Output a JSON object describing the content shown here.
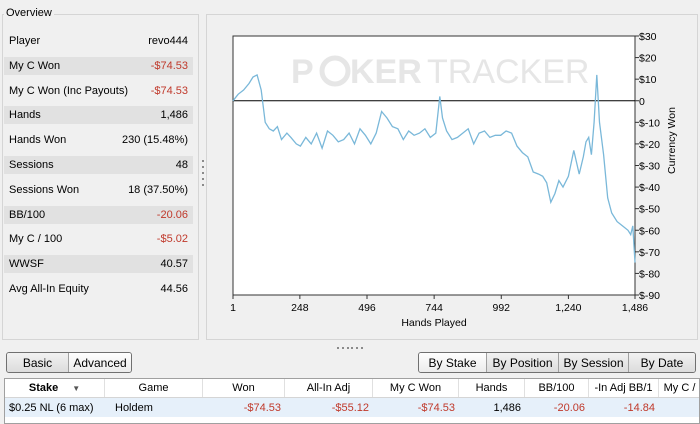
{
  "overview": {
    "title": "Overview",
    "stats": [
      {
        "label": "Player",
        "value": "revo444",
        "negative": false,
        "shaded": false
      },
      {
        "label": "My C Won",
        "value": "-$74.53",
        "negative": true,
        "shaded": true
      },
      {
        "label": "My C Won (Inc Payouts)",
        "value": "-$74.53",
        "negative": true,
        "shaded": false
      },
      {
        "label": "Hands",
        "value": "1,486",
        "negative": false,
        "shaded": true
      },
      {
        "label": "Hands Won",
        "value": "230 (15.48%)",
        "negative": false,
        "shaded": false
      },
      {
        "label": "Sessions",
        "value": "48",
        "negative": false,
        "shaded": true
      },
      {
        "label": "Sessions Won",
        "value": "18 (37.50%)",
        "negative": false,
        "shaded": false
      },
      {
        "label": "BB/100",
        "value": "-20.06",
        "negative": true,
        "shaded": true
      },
      {
        "label": "My C / 100",
        "value": "-$5.02",
        "negative": true,
        "shaded": false
      },
      {
        "label": "WWSF",
        "value": "40.57",
        "negative": false,
        "shaded": true
      },
      {
        "label": "Avg All-In Equity",
        "value": "44.56",
        "negative": false,
        "shaded": false
      }
    ]
  },
  "chart": {
    "watermark_left": "P",
    "watermark_right": "KER",
    "watermark_brand": "TRACKER",
    "colors": {
      "line": "#7ab8d9",
      "zero_line": "#000000",
      "grid": "#dddddd",
      "watermark": "#e6e6e6"
    }
  },
  "chart_data": {
    "type": "line",
    "xlabel": "Hands Played",
    "ylabel": "Currency Won",
    "xlim": [
      1,
      1486
    ],
    "ylim": [
      -90,
      30
    ],
    "x_ticks": [
      "1",
      "248",
      "496",
      "744",
      "992",
      "1,240",
      "1,486"
    ],
    "x_tick_values": [
      1,
      248,
      496,
      744,
      992,
      1240,
      1486
    ],
    "y_ticks": [
      "$30",
      "$20",
      "$10",
      "0",
      "$-10",
      "$-20",
      "$-30",
      "$-40",
      "$-50",
      "$-60",
      "$-70",
      "$-80",
      "$-90"
    ],
    "y_tick_values": [
      30,
      20,
      10,
      0,
      -10,
      -20,
      -30,
      -40,
      -50,
      -60,
      -70,
      -80,
      -90
    ],
    "series": [
      {
        "x": [
          1,
          20,
          40,
          60,
          75,
          90,
          105,
          120,
          135,
          150,
          165,
          180,
          200,
          215,
          235,
          250,
          270,
          290,
          310,
          330,
          350,
          370,
          390,
          410,
          430,
          450,
          470,
          490,
          510,
          530,
          550,
          570,
          590,
          610,
          630,
          650,
          670,
          690,
          710,
          730,
          750,
          765,
          775,
          790,
          810,
          830,
          850,
          870,
          890,
          910,
          930,
          950,
          970,
          990,
          1010,
          1030,
          1050,
          1070,
          1090,
          1110,
          1130,
          1145,
          1160,
          1175,
          1190,
          1205,
          1220,
          1240,
          1260,
          1280,
          1295,
          1305,
          1315,
          1325,
          1335,
          1345,
          1355,
          1370,
          1385,
          1400,
          1420,
          1440,
          1460,
          1470,
          1478,
          1486
        ],
        "y": [
          0,
          3,
          5,
          8,
          11,
          12,
          5,
          -10,
          -13,
          -14,
          -12,
          -18,
          -15,
          -17,
          -20,
          -21,
          -17,
          -20,
          -15,
          -22,
          -14,
          -16,
          -19,
          -18,
          -15,
          -20,
          -13,
          -16,
          -20,
          -15,
          -5,
          -8,
          -12,
          -13,
          -18,
          -14,
          -16,
          -15,
          -13,
          -17,
          -15,
          2,
          -8,
          -14,
          -18,
          -17,
          -15,
          -13,
          -20,
          -15,
          -14,
          -17,
          -16,
          -16,
          -14,
          -15,
          -21,
          -24,
          -26,
          -33,
          -34,
          -35,
          -38,
          -47,
          -43,
          -37,
          -40,
          -35,
          -23,
          -34,
          -26,
          -19,
          -17,
          -25,
          -10,
          12,
          -10,
          -25,
          -45,
          -52,
          -56,
          -58,
          -60,
          -62,
          -58,
          -75
        ]
      }
    ]
  },
  "left_buttons": [
    {
      "label": "Basic",
      "active": false
    },
    {
      "label": "Advanced",
      "active": true
    }
  ],
  "right_buttons": [
    {
      "label": "By Stake",
      "active": true
    },
    {
      "label": "By Position",
      "active": false
    },
    {
      "label": "By Session",
      "active": false
    },
    {
      "label": "By Date",
      "active": false
    }
  ],
  "table": {
    "columns": [
      "Stake",
      "Game",
      "Won",
      "All-In Adj",
      "My C Won",
      "Hands",
      "BB/100",
      "-In Adj BB/1",
      "My C /"
    ],
    "rows": [
      [
        "$0.25 NL (6 max)",
        "Holdem",
        "-$74.53",
        "-$55.12",
        "-$74.53",
        "1,486",
        "-20.06",
        "-14.84",
        ""
      ]
    ],
    "negative_cols": [
      2,
      3,
      4,
      6,
      7
    ]
  }
}
